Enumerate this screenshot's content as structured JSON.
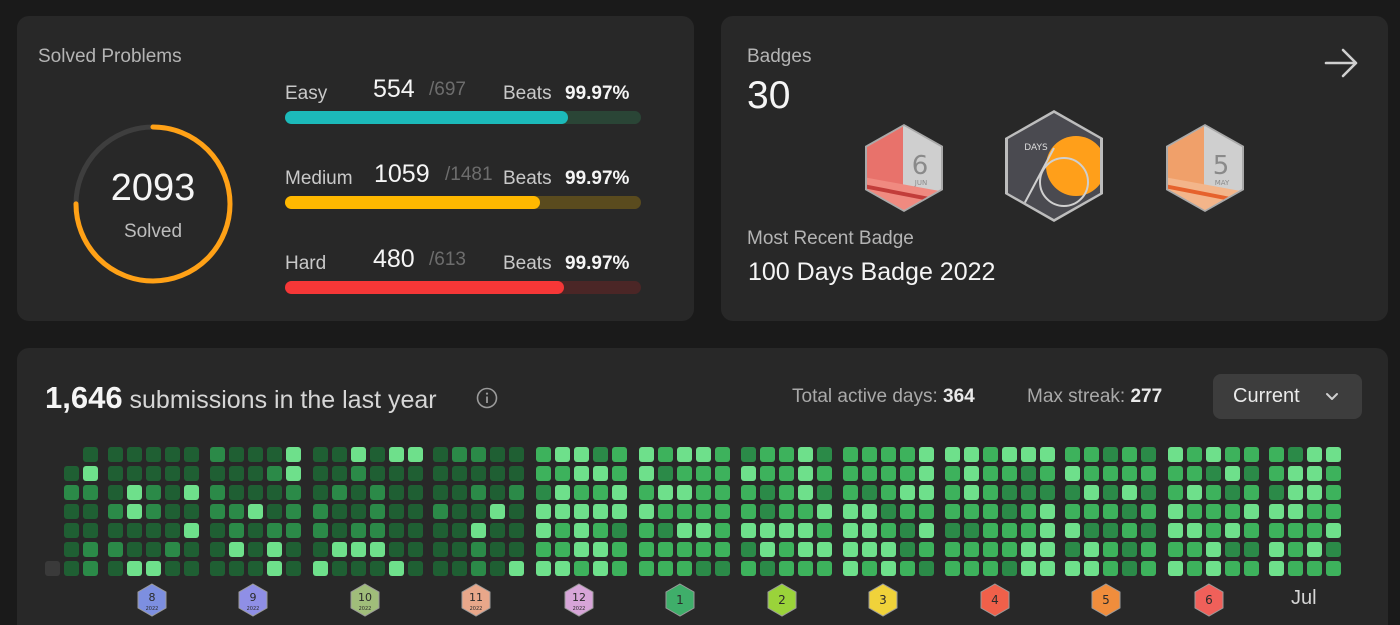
{
  "solved": {
    "title": "Solved Problems",
    "total": "2093",
    "total_label": "Solved",
    "ring_color": "#ffa116",
    "difficulties": [
      {
        "name": "Easy",
        "count": "554",
        "total": "/697",
        "beats_label": "Beats",
        "beats": "99.97%",
        "solved": 554,
        "of": 697,
        "color": "#1cbaba",
        "track": "#2a4536"
      },
      {
        "name": "Medium",
        "count": "1059",
        "total": "/1481",
        "beats_label": "Beats",
        "beats": "99.97%",
        "solved": 1059,
        "of": 1481,
        "color": "#ffb800",
        "track": "#5a4b1e"
      },
      {
        "name": "Hard",
        "count": "480",
        "total": "/613",
        "beats_label": "Beats",
        "beats": "99.97%",
        "solved": 480,
        "of": 613,
        "color": "#f63737",
        "track": "#4b2626"
      }
    ]
  },
  "badges": {
    "title": "Badges",
    "count": "30",
    "arrow_icon": "arrow-right-icon",
    "items": [
      {
        "name": "badge-6-jun",
        "label": "6",
        "sub": "JUN",
        "color": "#f0605a"
      },
      {
        "name": "badge-100-days",
        "label": "DAYS",
        "sub": "",
        "color": "#ff9f1a"
      },
      {
        "name": "badge-5-may",
        "label": "5",
        "sub": "MAY",
        "color": "#f08d3c"
      }
    ],
    "recent_label": "Most Recent Badge",
    "recent_name": "100 Days Badge 2022"
  },
  "submissions": {
    "count": "1,646",
    "text": " submissions in the last year",
    "info_icon": "info-icon",
    "active_days_label": "Total active days: ",
    "active_days": "364",
    "max_streak_label": "Max streak: ",
    "max_streak": "277",
    "dropdown": "Current",
    "month_badges": [
      {
        "label": "8",
        "year": "2022",
        "color": "#7d8fe0"
      },
      {
        "label": "9",
        "year": "2022",
        "color": "#8f8fe6"
      },
      {
        "label": "10",
        "year": "2022",
        "color": "#a0bd7a"
      },
      {
        "label": "11",
        "year": "2022",
        "color": "#e8a78a"
      },
      {
        "label": "12",
        "year": "2022",
        "color": "#d7a5d8"
      },
      {
        "label": "1",
        "year": "",
        "color": "#3fae6a"
      },
      {
        "label": "2",
        "year": "",
        "color": "#9ad33a"
      },
      {
        "label": "3",
        "year": "",
        "color": "#f0d23a"
      },
      {
        "label": "4",
        "year": "",
        "color": "#f0604a"
      },
      {
        "label": "5",
        "year": "",
        "color": "#f08d3c"
      },
      {
        "label": "6",
        "year": "",
        "color": "#f0605a"
      }
    ],
    "last_month": "Jul",
    "palette": {
      "l0": "#3a3a3a",
      "l1": "#1f5f33",
      "l2": "#2b8a48",
      "l3": "#3db25c",
      "l4": "#6ee08b"
    }
  }
}
